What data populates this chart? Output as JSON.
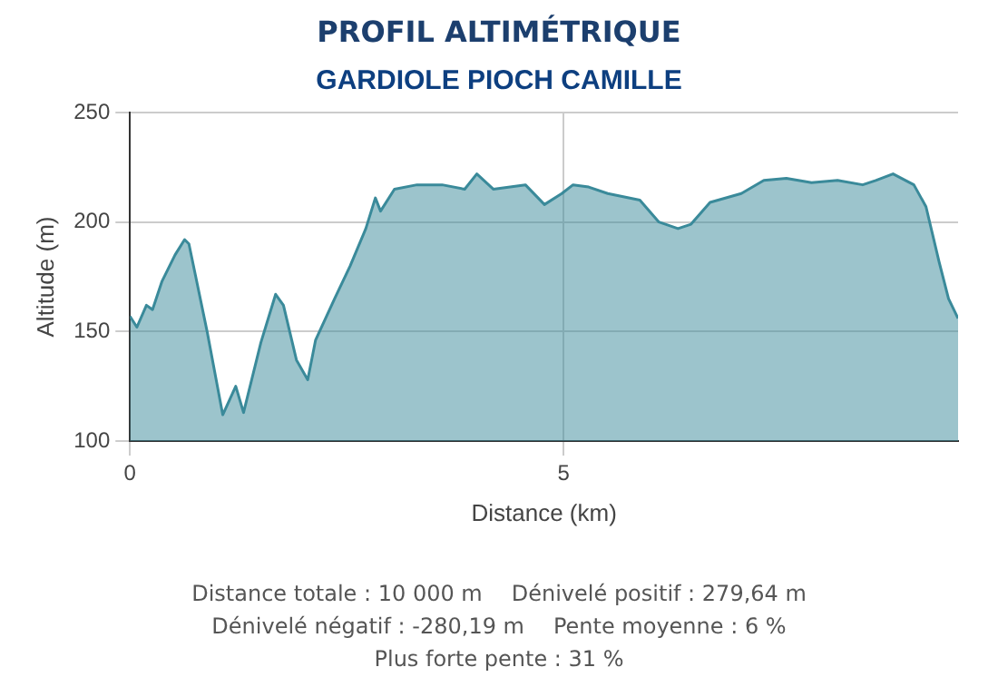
{
  "chart_data": {
    "type": "area",
    "title": "PROFIL ALTIMÉTRIQUE",
    "subtitle": "GARDIOLE PIOCH CAMILLE",
    "xlabel": "Distance (km)",
    "ylabel": "Altitude (m)",
    "x": [
      0,
      0.08,
      0.19,
      0.26,
      0.37,
      0.52,
      0.63,
      0.68,
      0.89,
      1.07,
      1.22,
      1.31,
      1.51,
      1.68,
      1.77,
      1.92,
      2.05,
      2.14,
      2.36,
      2.54,
      2.72,
      2.83,
      2.89,
      3.05,
      3.31,
      3.6,
      3.86,
      4.0,
      4.19,
      4.56,
      4.78,
      4.98,
      5.11,
      5.29,
      5.51,
      5.88,
      6.1,
      6.32,
      6.47,
      6.69,
      7.05,
      7.31,
      7.57,
      7.86,
      8.16,
      8.45,
      8.6,
      8.8,
      9.04,
      9.18,
      9.33,
      9.44,
      9.55
    ],
    "series": [
      {
        "color": "#3a8a9a",
        "values": [
          157,
          152,
          162,
          160,
          173,
          185,
          192,
          190,
          150,
          112,
          125,
          113,
          145,
          167,
          162,
          137,
          128,
          146,
          165,
          180,
          197,
          211,
          205,
          215,
          217,
          217,
          215,
          222,
          215,
          217,
          208,
          213,
          217,
          216,
          213,
          210,
          200,
          197,
          199,
          209,
          213,
          219,
          220,
          218,
          219,
          217,
          219,
          222,
          217,
          207,
          182,
          165,
          156
        ]
      }
    ],
    "xlim": [
      0,
      9.55
    ],
    "xticks": [
      0,
      5
    ],
    "ylim": [
      100,
      250
    ],
    "yticks": [
      100,
      150,
      200,
      250
    ],
    "grid": true,
    "marker": "none",
    "annotations": [
      "Distance totale : 10 000 m",
      "Dénivelé positif : 279,64 m",
      "Dénivelé négatif : -280,19 m",
      "Pente moyenne : 6 %",
      "Plus forte pente : 31 %"
    ]
  }
}
